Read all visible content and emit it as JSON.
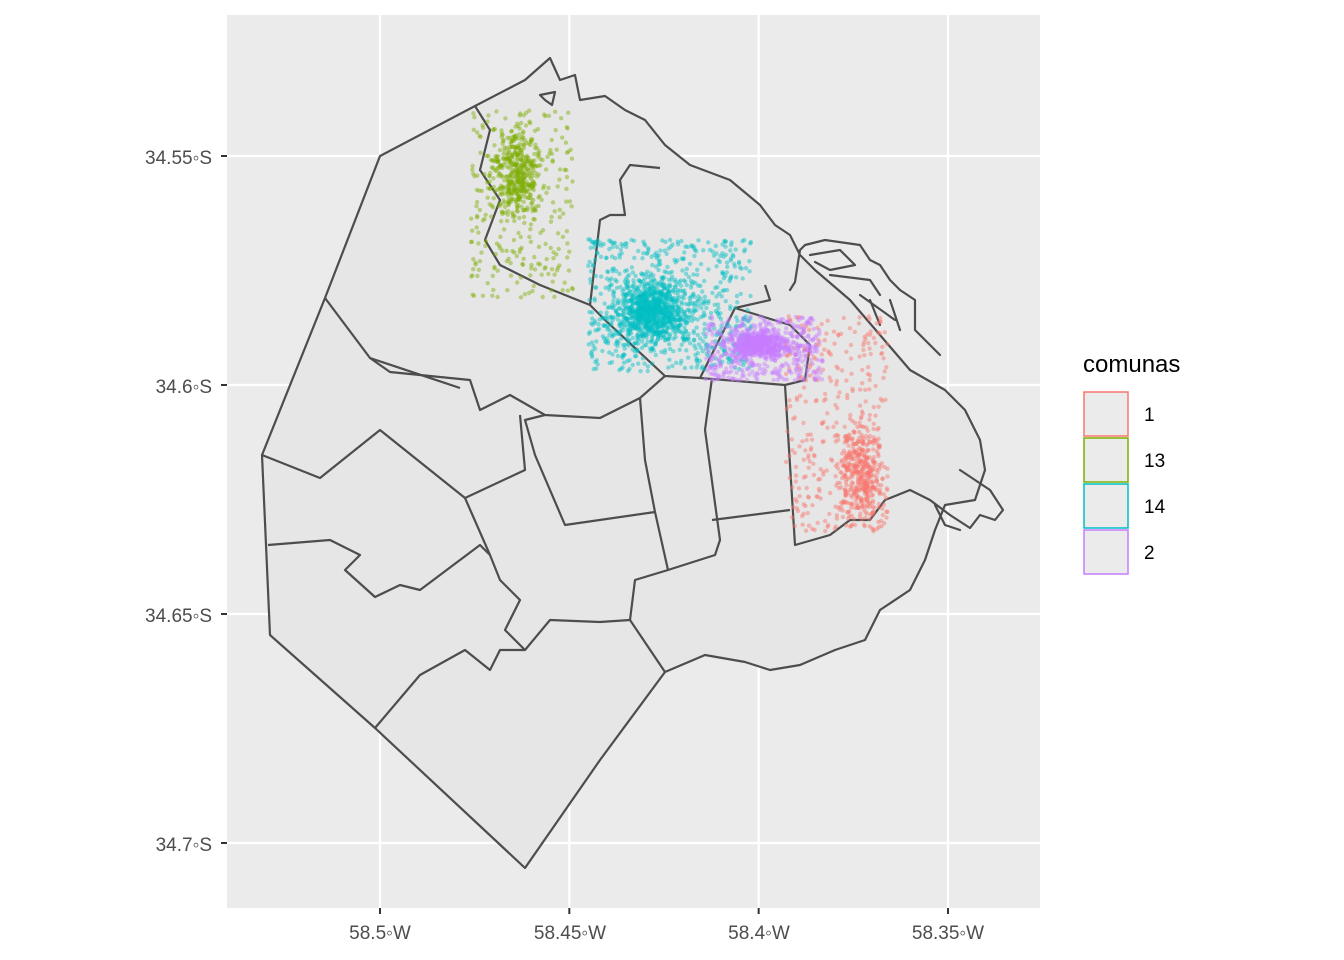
{
  "chart_data": {
    "type": "scatter",
    "title": "",
    "xlabel": "",
    "ylabel": "",
    "x_axis": {
      "ticks": [
        -58.5,
        -58.45,
        -58.4,
        -58.35
      ],
      "tick_labels": [
        "58.5◦W",
        "58.45◦W",
        "58.4◦W",
        "58.35◦W"
      ]
    },
    "y_axis": {
      "ticks": [
        -34.55,
        -34.6,
        -34.65,
        -34.7
      ],
      "tick_labels": [
        "34.55◦S",
        "34.6◦S",
        "34.65◦S",
        "34.7◦S"
      ]
    },
    "grid": true,
    "basemap": "Buenos Aires comunas boundaries",
    "legend": {
      "title": "comunas",
      "position": "right",
      "entries": [
        {
          "label": "1",
          "color": "#F8766D"
        },
        {
          "label": "13",
          "color": "#7CAE00"
        },
        {
          "label": "14",
          "color": "#00BFC4"
        },
        {
          "label": "2",
          "color": "#C77CFF"
        }
      ]
    },
    "series": [
      {
        "name": "1",
        "color": "#F8766D",
        "lon_range": [
          -58.393,
          -58.366
        ],
        "lat_range": [
          -34.632,
          -34.585
        ],
        "density_center": [
          -58.373,
          -34.619
        ]
      },
      {
        "name": "13",
        "color": "#7CAE00",
        "lon_range": [
          -58.476,
          -58.449
        ],
        "lat_range": [
          -34.581,
          -34.54
        ],
        "density_center": [
          -58.464,
          -34.554
        ]
      },
      {
        "name": "14",
        "color": "#00BFC4",
        "lon_range": [
          -58.445,
          -58.402
        ],
        "lat_range": [
          -34.597,
          -34.568
        ],
        "density_center": [
          -58.428,
          -34.584
        ]
      },
      {
        "name": "2",
        "color": "#C77CFF",
        "lon_range": [
          -58.414,
          -58.383
        ],
        "lat_range": [
          -34.599,
          -34.585
        ],
        "density_center": [
          -58.4,
          -34.591
        ]
      }
    ]
  }
}
